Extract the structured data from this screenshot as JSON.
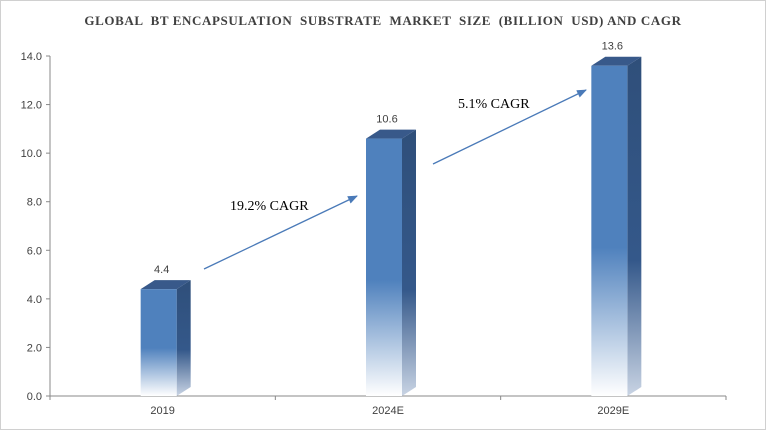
{
  "chart_data": {
    "type": "bar",
    "title": "GLOBAL  BT ENCAPSULATION  SUBSTRATE  MARKET  SIZE  (BILLION  USD) AND CAGR",
    "categories": [
      "2019",
      "2024E",
      "2029E"
    ],
    "values": [
      4.4,
      10.6,
      13.6
    ],
    "value_labels": [
      "4.4",
      "10.6",
      "13.6"
    ],
    "ylim": [
      0,
      14
    ],
    "yticks": [
      "0.0",
      "2.0",
      "4.0",
      "6.0",
      "8.0",
      "10.0",
      "12.0",
      "14.0"
    ],
    "grid": false,
    "legend": "none",
    "bar_color": "#4f81bd",
    "bar_side_color": "#2f4f7a",
    "bar_top_color": "#38598a",
    "annotations": [
      {
        "text": "19.2% CAGR",
        "from": "2019",
        "to": "2024E"
      },
      {
        "text": "5.1% CAGR",
        "from": "2024E",
        "to": "2029E"
      }
    ],
    "arrow_color": "#4a7ab8"
  }
}
